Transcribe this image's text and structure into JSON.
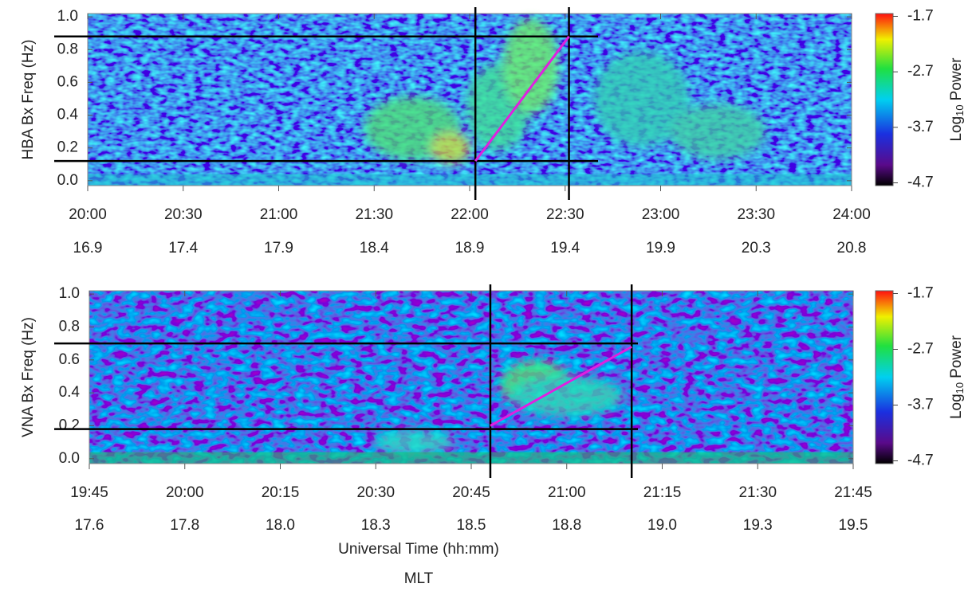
{
  "chart_data": [
    {
      "type": "spectrogram",
      "ylabel": "HBA Bx Freq (Hz)",
      "xlim": [
        20,
        24
      ],
      "ylim": [
        -0.03,
        1.02
      ],
      "xticks": [
        {
          "value": 20,
          "label": "20:00"
        },
        {
          "value": 20.5,
          "label": "20:30"
        },
        {
          "value": 21,
          "label": "21:00"
        },
        {
          "value": 21.5,
          "label": "21:30"
        },
        {
          "value": 22,
          "label": "22:00"
        },
        {
          "value": 22.5,
          "label": "22:30"
        },
        {
          "value": 23,
          "label": "23:00"
        },
        {
          "value": 23.5,
          "label": "23:30"
        },
        {
          "value": 24,
          "label": "24:00"
        }
      ],
      "mlt_labels": [
        "16.9",
        "17.4",
        "17.9",
        "18.4",
        "18.9",
        "19.4",
        "19.9",
        "20.3",
        "20.8"
      ],
      "yticks": [
        {
          "value": 0,
          "label": "0.0"
        },
        0.2,
        0.4,
        0.6,
        0.8,
        {
          "value": 1,
          "label": "1.0"
        }
      ],
      "hlines": [
        0.12,
        0.88
      ],
      "vlines": [
        22.03,
        22.52
      ],
      "guide_line": {
        "x": [
          22.03,
          22.52
        ],
        "y": [
          0.12,
          0.88
        ],
        "color": "#e020e0"
      },
      "clim": [
        -4.75,
        -1.65
      ],
      "cticks": [
        -1.7,
        -2.7,
        -3.7,
        -4.7
      ],
      "colorbar_label": [
        "Log",
        "10",
        "Power"
      ]
    },
    {
      "type": "spectrogram",
      "ylabel": "VNA Bx Freq (Hz)",
      "xlim": [
        19.75,
        21.75
      ],
      "ylim": [
        -0.03,
        1.02
      ],
      "xticks": [
        {
          "value": 19.75,
          "label": "19:45"
        },
        {
          "value": 20,
          "label": "20:00"
        },
        {
          "value": 20.25,
          "label": "20:15"
        },
        {
          "value": 20.5,
          "label": "20:30"
        },
        {
          "value": 20.75,
          "label": "20:45"
        },
        {
          "value": 21,
          "label": "21:00"
        },
        {
          "value": 21.25,
          "label": "21:15"
        },
        {
          "value": 21.5,
          "label": "21:30"
        },
        {
          "value": 21.75,
          "label": "21:45"
        }
      ],
      "mlt_labels": [
        "17.6",
        "17.8",
        "18.0",
        "18.3",
        "18.5",
        "18.8",
        "19.0",
        "19.3",
        "19.5"
      ],
      "yticks": [
        {
          "value": 0,
          "label": "0.0"
        },
        0.2,
        0.4,
        0.6,
        0.8,
        {
          "value": 1,
          "label": "1.0"
        }
      ],
      "hlines": [
        0.18,
        0.7
      ],
      "vlines": [
        20.8,
        21.17
      ],
      "guide_line": {
        "x": [
          20.8,
          21.17
        ],
        "y": [
          0.2,
          0.68
        ],
        "color": "#e020e0"
      },
      "clim": [
        -4.75,
        -1.65
      ],
      "cticks": [
        -1.7,
        -2.7,
        -3.7,
        -4.7
      ],
      "colorbar_label": [
        "Log",
        "10",
        "Power"
      ],
      "xlabel": "Universal Time (hh:mm)",
      "xlabel2": "MLT"
    }
  ]
}
